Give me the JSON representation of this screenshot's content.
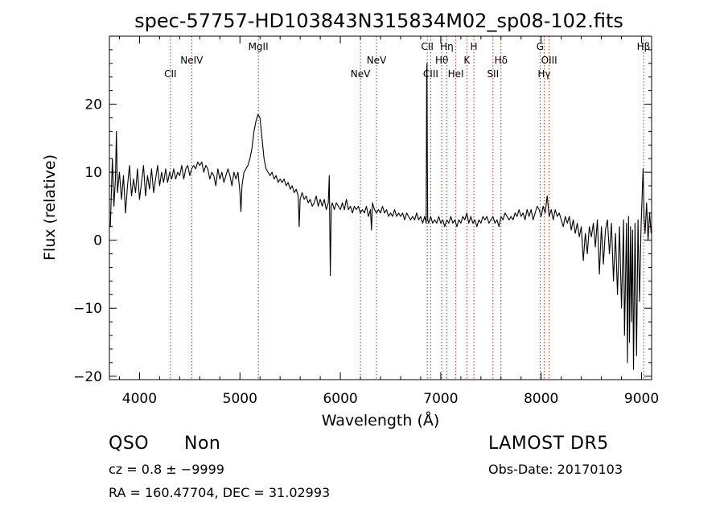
{
  "chart_data": {
    "type": "line",
    "title": "spec-57757-HD103843N315834M02_sp08-102.fits",
    "xlabel": "Wavelength (Å)",
    "ylabel": "Flux (relative)",
    "xlim": [
      3700,
      9100
    ],
    "ylim": [
      -20.5,
      30
    ],
    "xticks": [
      4000,
      5000,
      6000,
      7000,
      8000,
      9000
    ],
    "yticks": [
      -20,
      -10,
      0,
      10,
      20
    ],
    "line_color": "#000000",
    "marker_color": "#cc2200",
    "series": [
      {
        "values": [
          [
            3710,
            2.0
          ],
          [
            3730,
            12.0
          ],
          [
            3745,
            5.0
          ],
          [
            3760,
            9.0
          ],
          [
            3770,
            16.0
          ],
          [
            3780,
            7.0
          ],
          [
            3800,
            10.0
          ],
          [
            3820,
            6.0
          ],
          [
            3840,
            9.5
          ],
          [
            3860,
            4.0
          ],
          [
            3880,
            8.0
          ],
          [
            3900,
            11.0
          ],
          [
            3920,
            6.5
          ],
          [
            3940,
            9.0
          ],
          [
            3960,
            7.0
          ],
          [
            3980,
            10.5
          ],
          [
            4000,
            6.0
          ],
          [
            4020,
            8.5
          ],
          [
            4040,
            11.0
          ],
          [
            4060,
            6.5
          ],
          [
            4080,
            9.5
          ],
          [
            4100,
            7.5
          ],
          [
            4120,
            10.5
          ],
          [
            4140,
            7.0
          ],
          [
            4160,
            9.0
          ],
          [
            4180,
            11.0
          ],
          [
            4200,
            8.0
          ],
          [
            4220,
            10.0
          ],
          [
            4240,
            8.5
          ],
          [
            4260,
            10.5
          ],
          [
            4280,
            8.5
          ],
          [
            4300,
            10.0
          ],
          [
            4320,
            9.0
          ],
          [
            4340,
            10.5
          ],
          [
            4360,
            9.0
          ],
          [
            4380,
            10.0
          ],
          [
            4400,
            9.5
          ],
          [
            4420,
            11.0
          ],
          [
            4440,
            9.0
          ],
          [
            4460,
            10.5
          ],
          [
            4480,
            11.0
          ],
          [
            4500,
            9.5
          ],
          [
            4520,
            10.5
          ],
          [
            4540,
            11.0
          ],
          [
            4560,
            10.5
          ],
          [
            4580,
            11.5
          ],
          [
            4600,
            11.0
          ],
          [
            4620,
            11.5
          ],
          [
            4640,
            10.0
          ],
          [
            4660,
            11.0
          ],
          [
            4680,
            10.5
          ],
          [
            4700,
            9.0
          ],
          [
            4720,
            10.0
          ],
          [
            4740,
            9.5
          ],
          [
            4760,
            8.0
          ],
          [
            4780,
            10.5
          ],
          [
            4800,
            9.0
          ],
          [
            4820,
            10.0
          ],
          [
            4840,
            8.5
          ],
          [
            4860,
            9.5
          ],
          [
            4880,
            10.5
          ],
          [
            4900,
            9.5
          ],
          [
            4920,
            8.0
          ],
          [
            4940,
            10.0
          ],
          [
            4960,
            9.0
          ],
          [
            4980,
            10.0
          ],
          [
            5000,
            7.0
          ],
          [
            5010,
            4.2
          ],
          [
            5020,
            8.0
          ],
          [
            5040,
            10.0
          ],
          [
            5060,
            10.5
          ],
          [
            5080,
            11.0
          ],
          [
            5100,
            12.0
          ],
          [
            5120,
            13.5
          ],
          [
            5140,
            16.0
          ],
          [
            5160,
            17.5
          ],
          [
            5180,
            18.5
          ],
          [
            5200,
            18.0
          ],
          [
            5220,
            15.0
          ],
          [
            5240,
            12.0
          ],
          [
            5260,
            10.5
          ],
          [
            5280,
            10.0
          ],
          [
            5300,
            9.5
          ],
          [
            5320,
            10.0
          ],
          [
            5340,
            9.0
          ],
          [
            5360,
            9.5
          ],
          [
            5380,
            8.5
          ],
          [
            5400,
            9.0
          ],
          [
            5420,
            8.5
          ],
          [
            5440,
            9.0
          ],
          [
            5460,
            8.0
          ],
          [
            5480,
            8.5
          ],
          [
            5500,
            7.5
          ],
          [
            5520,
            8.0
          ],
          [
            5540,
            7.0
          ],
          [
            5560,
            7.5
          ],
          [
            5580,
            6.5
          ],
          [
            5590,
            2.0
          ],
          [
            5600,
            6.0
          ],
          [
            5620,
            7.0
          ],
          [
            5640,
            6.0
          ],
          [
            5660,
            6.5
          ],
          [
            5680,
            5.5
          ],
          [
            5700,
            6.0
          ],
          [
            5720,
            5.0
          ],
          [
            5740,
            5.5
          ],
          [
            5760,
            6.5
          ],
          [
            5780,
            5.0
          ],
          [
            5800,
            6.0
          ],
          [
            5820,
            5.0
          ],
          [
            5840,
            6.0
          ],
          [
            5860,
            4.5
          ],
          [
            5880,
            5.5
          ],
          [
            5890,
            9.5
          ],
          [
            5900,
            -5.2
          ],
          [
            5910,
            5.0
          ],
          [
            5920,
            5.5
          ],
          [
            5940,
            4.5
          ],
          [
            5960,
            5.5
          ],
          [
            5980,
            5.0
          ],
          [
            6000,
            4.5
          ],
          [
            6020,
            5.5
          ],
          [
            6040,
            4.5
          ],
          [
            6060,
            6.0
          ],
          [
            6080,
            4.5
          ],
          [
            6100,
            5.0
          ],
          [
            6120,
            4.0
          ],
          [
            6140,
            5.0
          ],
          [
            6160,
            4.5
          ],
          [
            6180,
            5.0
          ],
          [
            6200,
            4.0
          ],
          [
            6220,
            4.5
          ],
          [
            6240,
            4.0
          ],
          [
            6260,
            5.0
          ],
          [
            6280,
            3.5
          ],
          [
            6300,
            4.5
          ],
          [
            6310,
            1.5
          ],
          [
            6320,
            5.5
          ],
          [
            6340,
            4.5
          ],
          [
            6360,
            4.0
          ],
          [
            6380,
            4.5
          ],
          [
            6400,
            4.0
          ],
          [
            6420,
            5.0
          ],
          [
            6440,
            4.0
          ],
          [
            6460,
            4.5
          ],
          [
            6480,
            3.5
          ],
          [
            6500,
            4.0
          ],
          [
            6520,
            3.5
          ],
          [
            6540,
            4.5
          ],
          [
            6560,
            3.5
          ],
          [
            6580,
            4.0
          ],
          [
            6600,
            3.5
          ],
          [
            6620,
            4.0
          ],
          [
            6640,
            3.0
          ],
          [
            6660,
            4.0
          ],
          [
            6680,
            3.5
          ],
          [
            6700,
            3.0
          ],
          [
            6720,
            3.5
          ],
          [
            6740,
            3.0
          ],
          [
            6760,
            4.0
          ],
          [
            6780,
            3.0
          ],
          [
            6800,
            3.5
          ],
          [
            6820,
            2.5
          ],
          [
            6840,
            3.5
          ],
          [
            6855,
            2.5
          ],
          [
            6860,
            25.0
          ],
          [
            6863,
            26.0
          ],
          [
            6866,
            12.0
          ],
          [
            6870,
            3.0
          ],
          [
            6880,
            2.5
          ],
          [
            6900,
            3.5
          ],
          [
            6920,
            2.5
          ],
          [
            6940,
            3.0
          ],
          [
            6960,
            2.5
          ],
          [
            6980,
            3.5
          ],
          [
            7000,
            2.5
          ],
          [
            7020,
            3.0
          ],
          [
            7040,
            2.0
          ],
          [
            7060,
            3.0
          ],
          [
            7080,
            2.5
          ],
          [
            7100,
            3.5
          ],
          [
            7120,
            2.5
          ],
          [
            7140,
            3.0
          ],
          [
            7160,
            2.0
          ],
          [
            7180,
            3.0
          ],
          [
            7200,
            2.5
          ],
          [
            7220,
            3.5
          ],
          [
            7240,
            3.0
          ],
          [
            7260,
            4.0
          ],
          [
            7280,
            2.5
          ],
          [
            7300,
            3.5
          ],
          [
            7320,
            2.5
          ],
          [
            7340,
            3.0
          ],
          [
            7360,
            2.0
          ],
          [
            7380,
            3.0
          ],
          [
            7400,
            2.5
          ],
          [
            7420,
            3.5
          ],
          [
            7440,
            3.0
          ],
          [
            7460,
            3.5
          ],
          [
            7480,
            2.5
          ],
          [
            7500,
            3.0
          ],
          [
            7520,
            3.5
          ],
          [
            7540,
            2.5
          ],
          [
            7560,
            3.0
          ],
          [
            7580,
            2.0
          ],
          [
            7600,
            3.5
          ],
          [
            7620,
            3.0
          ],
          [
            7640,
            4.0
          ],
          [
            7660,
            3.5
          ],
          [
            7680,
            3.0
          ],
          [
            7700,
            3.5
          ],
          [
            7720,
            3.0
          ],
          [
            7740,
            4.0
          ],
          [
            7760,
            3.5
          ],
          [
            7780,
            4.5
          ],
          [
            7800,
            3.5
          ],
          [
            7820,
            4.0
          ],
          [
            7840,
            3.0
          ],
          [
            7860,
            4.5
          ],
          [
            7880,
            3.5
          ],
          [
            7900,
            4.5
          ],
          [
            7920,
            3.0
          ],
          [
            7940,
            4.0
          ],
          [
            7960,
            5.0
          ],
          [
            7980,
            4.5
          ],
          [
            8000,
            3.5
          ],
          [
            8020,
            5.0
          ],
          [
            8040,
            4.0
          ],
          [
            8060,
            6.5
          ],
          [
            8080,
            3.5
          ],
          [
            8100,
            4.5
          ],
          [
            8120,
            3.0
          ],
          [
            8140,
            4.5
          ],
          [
            8160,
            3.5
          ],
          [
            8180,
            4.0
          ],
          [
            8200,
            3.0
          ],
          [
            8220,
            2.0
          ],
          [
            8240,
            3.5
          ],
          [
            8260,
            2.5
          ],
          [
            8280,
            3.5
          ],
          [
            8300,
            1.5
          ],
          [
            8320,
            3.0
          ],
          [
            8340,
            1.0
          ],
          [
            8360,
            2.5
          ],
          [
            8380,
            0.5
          ],
          [
            8400,
            2.0
          ],
          [
            8420,
            -3.0
          ],
          [
            8440,
            1.0
          ],
          [
            8460,
            -2.0
          ],
          [
            8480,
            2.0
          ],
          [
            8500,
            0.5
          ],
          [
            8520,
            2.5
          ],
          [
            8540,
            -1.0
          ],
          [
            8560,
            3.0
          ],
          [
            8580,
            -5.0
          ],
          [
            8600,
            2.0
          ],
          [
            8620,
            -3.5
          ],
          [
            8640,
            1.5
          ],
          [
            8660,
            3.0
          ],
          [
            8680,
            -2.0
          ],
          [
            8700,
            2.5
          ],
          [
            8720,
            -6.0
          ],
          [
            8740,
            1.0
          ],
          [
            8760,
            -8.0
          ],
          [
            8780,
            2.0
          ],
          [
            8800,
            -10.0
          ],
          [
            8820,
            3.0
          ],
          [
            8830,
            -14.0
          ],
          [
            8850,
            2.5
          ],
          [
            8860,
            -18.0
          ],
          [
            8870,
            3.5
          ],
          [
            8880,
            -15.0
          ],
          [
            8890,
            2.0
          ],
          [
            8900,
            -12.0
          ],
          [
            8910,
            1.5
          ],
          [
            8920,
            -19.0
          ],
          [
            8935,
            2.5
          ],
          [
            8950,
            -17.0
          ],
          [
            8965,
            3.0
          ],
          [
            8980,
            -9.0
          ],
          [
            8995,
            2.0
          ],
          [
            9005,
            6.0
          ],
          [
            9015,
            10.5
          ],
          [
            9025,
            3.5
          ],
          [
            9035,
            1.0
          ],
          [
            9050,
            5.5
          ],
          [
            9065,
            0.0
          ],
          [
            9080,
            4.0
          ],
          [
            9095,
            1.0
          ]
        ]
      }
    ],
    "lines": [
      {
        "wl": 4308,
        "label": "CII",
        "row": 3
      },
      {
        "wl": 4520,
        "label": "NeIV",
        "row": 2
      },
      {
        "wl": 5183,
        "label": "MgII",
        "row": 1
      },
      {
        "wl": 6200,
        "label": "NeV",
        "row": 3
      },
      {
        "wl": 6360,
        "label": "NeV",
        "row": 2
      },
      {
        "wl": 6866,
        "label": "CII",
        "row": 1
      },
      {
        "wl": 6900,
        "label": "CIII",
        "row": 3
      },
      {
        "wl": 7010,
        "label": "Hθ",
        "row": 2
      },
      {
        "wl": 7060,
        "label": "Hη",
        "row": 1
      },
      {
        "wl": 7150,
        "label": "HeI",
        "row": 3
      },
      {
        "wl": 7260,
        "label": "K",
        "row": 2
      },
      {
        "wl": 7330,
        "label": "H",
        "row": 1
      },
      {
        "wl": 7520,
        "label": "SII",
        "row": 3
      },
      {
        "wl": 7600,
        "label": "Hδ",
        "row": 2
      },
      {
        "wl": 7990,
        "label": "G",
        "row": 1
      },
      {
        "wl": 8030,
        "label": "Hγ",
        "row": 3
      },
      {
        "wl": 8080,
        "label": "OIII",
        "row": 2
      },
      {
        "wl": 9020,
        "label": "Hβ",
        "row": 1
      }
    ]
  },
  "info": {
    "class": "QSO",
    "subclass": "Non",
    "cz": "cz = 0.8 ± −9999",
    "coords": "RA = 160.47704, DEC =  31.02993",
    "survey": "LAMOST DR5",
    "obs_date": "Obs-Date: 20170103"
  }
}
